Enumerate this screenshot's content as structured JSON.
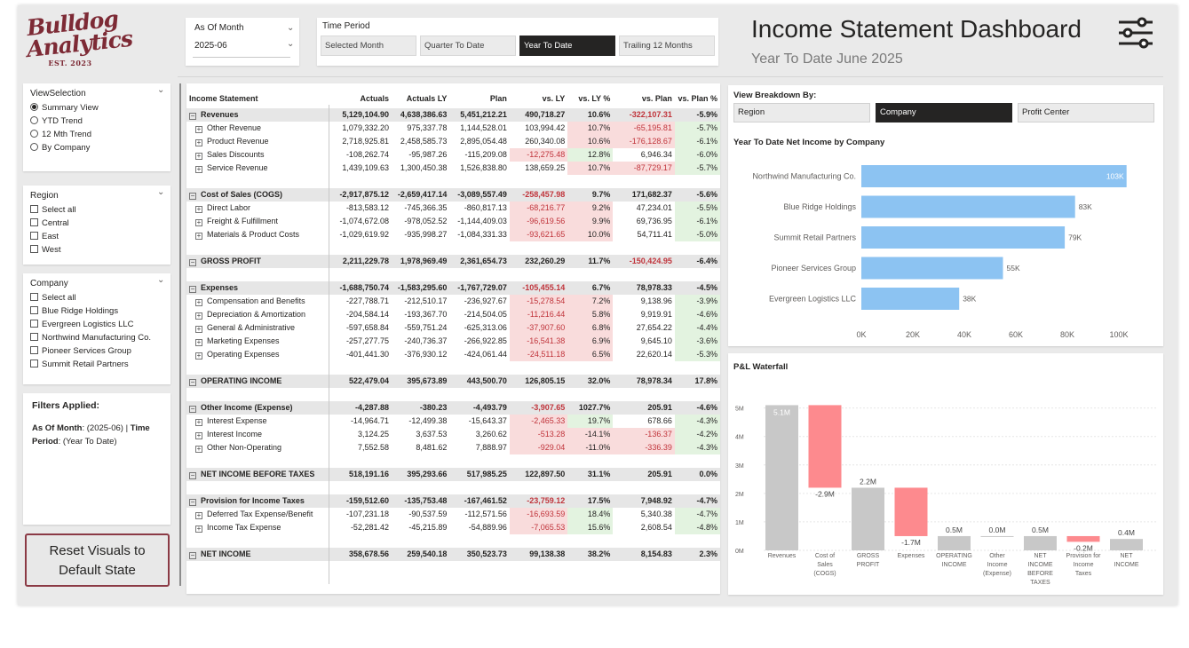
{
  "logo": {
    "line1": "Bulldog",
    "line2": "Analytics",
    "est": "EST. 2023"
  },
  "as_of": {
    "label": "As Of Month",
    "value": "2025-06"
  },
  "time_period": {
    "label": "Time Period",
    "options": [
      "Selected Month",
      "Quarter To Date",
      "Year To Date",
      "Trailing 12 Months"
    ],
    "selected": "Year To Date"
  },
  "header": {
    "title": "Income Statement Dashboard",
    "subtitle": "Year To Date June 2025",
    "settings_icon": "sliders-icon"
  },
  "view_selection": {
    "title": "ViewSelection",
    "options": [
      "Summary View",
      "YTD Trend",
      "12 Mth Trend",
      "By Company"
    ],
    "selected": "Summary View"
  },
  "region": {
    "title": "Region",
    "options": [
      "Select all",
      "Central",
      "East",
      "West"
    ]
  },
  "company": {
    "title": "Company",
    "options": [
      "Select all",
      "Blue Ridge Holdings",
      "Evergreen Logistics LLC",
      "Northwind Manufacturing Co.",
      "Pioneer Services Group",
      "Summit Retail Partners"
    ]
  },
  "filters": {
    "title": "Filters Applied:",
    "k1": "As Of Month",
    "v1": ": (2025-06) | ",
    "k2": "Time Period",
    "v2": ": (Year To Date)"
  },
  "reset_button": {
    "line1": "Reset Visuals to",
    "line2": "Default State"
  },
  "table": {
    "columns": [
      "Income Statement",
      "Actuals",
      "Actuals LY",
      "Plan",
      "vs. LY",
      "vs. LY %",
      "vs. Plan",
      "vs. Plan %"
    ],
    "rows": [
      {
        "type": "head",
        "cells": [
          "Revenues",
          "5,129,104.90",
          "4,638,386.63",
          "5,451,212.21",
          "490,718.27",
          "10.6%",
          "-322,107.31",
          "-5.9%"
        ]
      },
      {
        "type": "child",
        "cells": [
          "Other Revenue",
          "1,079,332.20",
          "975,337.78",
          "1,144,528.01",
          "103,994.42",
          "10.7%",
          "-65,195.81",
          "-5.7%"
        ]
      },
      {
        "type": "child",
        "cells": [
          "Product Revenue",
          "2,718,925.81",
          "2,458,585.73",
          "2,895,054.48",
          "260,340.08",
          "10.6%",
          "-176,128.67",
          "-6.1%"
        ]
      },
      {
        "type": "child",
        "cells": [
          "Sales Discounts",
          "-108,262.74",
          "-95,987.26",
          "-115,209.08",
          "-12,275.48",
          "12.8%",
          "6,946.34",
          "-6.0%"
        ]
      },
      {
        "type": "child",
        "cells": [
          "Service Revenue",
          "1,439,109.63",
          "1,300,450.38",
          "1,526,838.80",
          "138,659.25",
          "10.7%",
          "-87,729.17",
          "-5.7%"
        ]
      },
      {
        "type": "spacer",
        "cells": []
      },
      {
        "type": "head",
        "cells": [
          "Cost of Sales (COGS)",
          "-2,917,875.12",
          "-2,659,417.14",
          "-3,089,557.49",
          "-258,457.98",
          "9.7%",
          "171,682.37",
          "-5.6%"
        ]
      },
      {
        "type": "child",
        "cells": [
          "Direct Labor",
          "-813,583.12",
          "-745,366.35",
          "-860,817.13",
          "-68,216.77",
          "9.2%",
          "47,234.01",
          "-5.5%"
        ]
      },
      {
        "type": "child",
        "cells": [
          "Freight & Fulfillment",
          "-1,074,672.08",
          "-978,052.52",
          "-1,144,409.03",
          "-96,619.56",
          "9.9%",
          "69,736.95",
          "-6.1%"
        ]
      },
      {
        "type": "child",
        "cells": [
          "Materials & Product Costs",
          "-1,029,619.92",
          "-935,998.27",
          "-1,084,331.33",
          "-93,621.65",
          "10.0%",
          "54,711.41",
          "-5.0%"
        ]
      },
      {
        "type": "spacer",
        "cells": []
      },
      {
        "type": "head",
        "cells": [
          "GROSS PROFIT",
          "2,211,229.78",
          "1,978,969.49",
          "2,361,654.73",
          "232,260.29",
          "11.7%",
          "-150,424.95",
          "-6.4%"
        ]
      },
      {
        "type": "spacer",
        "cells": []
      },
      {
        "type": "head",
        "cells": [
          "Expenses",
          "-1,688,750.74",
          "-1,583,295.60",
          "-1,767,729.07",
          "-105,455.14",
          "6.7%",
          "78,978.33",
          "-4.5%"
        ]
      },
      {
        "type": "child",
        "cells": [
          "Compensation and Benefits",
          "-227,788.71",
          "-212,510.17",
          "-236,927.67",
          "-15,278.54",
          "7.2%",
          "9,138.96",
          "-3.9%"
        ]
      },
      {
        "type": "child",
        "cells": [
          "Depreciation & Amortization",
          "-204,584.14",
          "-193,367.70",
          "-214,504.05",
          "-11,216.44",
          "5.8%",
          "9,919.91",
          "-4.6%"
        ]
      },
      {
        "type": "child",
        "cells": [
          "General & Administrative",
          "-597,658.84",
          "-559,751.24",
          "-625,313.06",
          "-37,907.60",
          "6.8%",
          "27,654.22",
          "-4.4%"
        ]
      },
      {
        "type": "child",
        "cells": [
          "Marketing Expenses",
          "-257,277.75",
          "-240,736.37",
          "-266,922.85",
          "-16,541.38",
          "6.9%",
          "9,645.10",
          "-3.6%"
        ]
      },
      {
        "type": "child",
        "cells": [
          "Operating Expenses",
          "-401,441.30",
          "-376,930.12",
          "-424,061.44",
          "-24,511.18",
          "6.5%",
          "22,620.14",
          "-5.3%"
        ]
      },
      {
        "type": "spacer",
        "cells": []
      },
      {
        "type": "head",
        "cells": [
          "OPERATING INCOME",
          "522,479.04",
          "395,673.89",
          "443,500.70",
          "126,805.15",
          "32.0%",
          "78,978.34",
          "17.8%"
        ]
      },
      {
        "type": "spacer",
        "cells": []
      },
      {
        "type": "head",
        "cells": [
          "Other Income (Expense)",
          "-4,287.88",
          "-380.23",
          "-4,493.79",
          "-3,907.65",
          "1027.7%",
          "205.91",
          "-4.6%"
        ]
      },
      {
        "type": "child",
        "cells": [
          "Interest Expense",
          "-14,964.71",
          "-12,499.38",
          "-15,643.37",
          "-2,465.33",
          "19.7%",
          "678.66",
          "-4.3%"
        ]
      },
      {
        "type": "child",
        "cells": [
          "Interest Income",
          "3,124.25",
          "3,637.53",
          "3,260.62",
          "-513.28",
          "-14.1%",
          "-136.37",
          "-4.2%"
        ]
      },
      {
        "type": "child",
        "cells": [
          "Other Non-Operating",
          "7,552.58",
          "8,481.62",
          "7,888.97",
          "-929.04",
          "-11.0%",
          "-336.39",
          "-4.3%"
        ]
      },
      {
        "type": "spacer",
        "cells": []
      },
      {
        "type": "head",
        "cells": [
          "NET INCOME BEFORE TAXES",
          "518,191.16",
          "395,293.66",
          "517,985.25",
          "122,897.50",
          "31.1%",
          "205.91",
          "0.0%"
        ]
      },
      {
        "type": "spacer",
        "cells": []
      },
      {
        "type": "head",
        "cells": [
          "Provision for Income Taxes",
          "-159,512.60",
          "-135,753.48",
          "-167,461.52",
          "-23,759.12",
          "17.5%",
          "7,948.92",
          "-4.7%"
        ]
      },
      {
        "type": "child",
        "cells": [
          "Deferred Tax Expense/Benefit",
          "-107,231.18",
          "-90,537.59",
          "-112,571.56",
          "-16,693.59",
          "18.4%",
          "5,340.38",
          "-4.7%"
        ]
      },
      {
        "type": "child",
        "cells": [
          "Income Tax Expense",
          "-52,281.42",
          "-45,215.89",
          "-54,889.96",
          "-7,065.53",
          "15.6%",
          "2,608.54",
          "-4.8%"
        ]
      },
      {
        "type": "spacer",
        "cells": []
      },
      {
        "type": "head",
        "cells": [
          "NET INCOME",
          "358,678.56",
          "259,540.18",
          "350,523.73",
          "99,138.38",
          "38.2%",
          "8,154.83",
          "2.3%"
        ]
      }
    ]
  },
  "breakdown": {
    "title": "View Breakdown By:",
    "options": [
      "Region",
      "Company",
      "Profit Center"
    ],
    "selected": "Company"
  },
  "chart_data": [
    {
      "type": "bar",
      "orientation": "horizontal",
      "title": "Year To Date Net Income by Company",
      "categories": [
        "Northwind Manufacturing Co.",
        "Blue Ridge Holdings",
        "Summit Retail Partners",
        "Pioneer Services Group",
        "Evergreen Logistics LLC"
      ],
      "values": [
        103000,
        83000,
        79000,
        55000,
        38000
      ],
      "data_labels": [
        "103K",
        "83K",
        "79K",
        "55K",
        "38K"
      ],
      "xticks": [
        "0K",
        "20K",
        "40K",
        "60K",
        "80K",
        "100K"
      ],
      "xlim": [
        0,
        100000
      ],
      "color": "#8cc3f2"
    },
    {
      "type": "waterfall",
      "title": "P&L Waterfall",
      "categories": [
        [
          "Revenues"
        ],
        [
          "Cost of",
          "Sales",
          "(COGS)"
        ],
        [
          "GROSS",
          "PROFIT"
        ],
        [
          "Expenses"
        ],
        [
          "OPERATING",
          "INCOME"
        ],
        [
          "Other",
          "Income",
          "(Expense)"
        ],
        [
          "NET",
          "INCOME",
          "BEFORE",
          "TAXES"
        ],
        [
          "Provision for",
          "Income",
          "Taxes"
        ],
        [
          "NET",
          "INCOME"
        ]
      ],
      "values": [
        5.1,
        -2.9,
        2.2,
        -1.7,
        0.5,
        0.0,
        0.5,
        -0.2,
        0.4
      ],
      "kinds": [
        "total",
        "delta",
        "total",
        "delta",
        "total",
        "delta",
        "total",
        "delta",
        "total"
      ],
      "data_labels": [
        "5.1M",
        "-2.9M",
        "2.2M",
        "-1.7M",
        "0.5M",
        "0.0M",
        "0.5M",
        "-0.2M",
        "0.4M"
      ],
      "yticks": [
        "0M",
        "1M",
        "2M",
        "3M",
        "4M",
        "5M"
      ],
      "ylim": [
        0,
        5.3
      ],
      "colors": {
        "total": "#c8c8c8",
        "decrease": "#fd8a8e"
      }
    }
  ]
}
